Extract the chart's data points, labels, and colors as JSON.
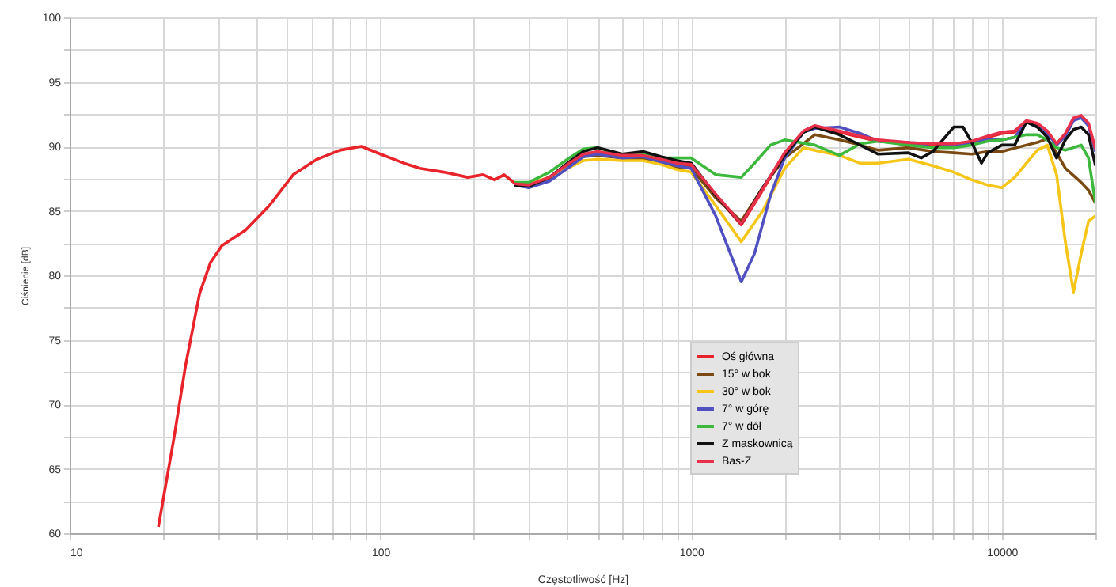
{
  "chart_data": {
    "type": "line",
    "xlabel": "Częstotliwość [Hz]",
    "ylabel": "Ciśnienie [dB]",
    "log": "x",
    "xlim": [
      10,
      20000
    ],
    "ylim": [
      60,
      100
    ],
    "xticks": [
      10,
      {
        "value": 20,
        "label": null
      },
      {
        "value": 30,
        "label": null
      },
      {
        "value": 40,
        "label": null
      },
      {
        "value": 50,
        "label": null
      },
      {
        "value": 60,
        "label": null
      },
      {
        "value": 70,
        "label": null
      },
      {
        "value": 80,
        "label": null
      },
      {
        "value": 90,
        "label": null
      },
      100,
      {
        "value": 200,
        "label": null
      },
      {
        "value": 300,
        "label": null
      },
      {
        "value": 400,
        "label": null
      },
      {
        "value": 500,
        "label": null
      },
      {
        "value": 600,
        "label": null
      },
      {
        "value": 700,
        "label": null
      },
      {
        "value": 800,
        "label": null
      },
      {
        "value": 900,
        "label": null
      },
      1000,
      {
        "value": 2000,
        "label": null
      },
      {
        "value": 3000,
        "label": null
      },
      {
        "value": 4000,
        "label": null
      },
      {
        "value": 5000,
        "label": null
      },
      {
        "value": 6000,
        "label": null
      },
      {
        "value": 7000,
        "label": null
      },
      {
        "value": 8000,
        "label": null
      },
      {
        "value": 9000,
        "label": null
      },
      10000,
      {
        "value": 20000,
        "label": null
      }
    ],
    "yticks": [
      60,
      {
        "value": 62.5,
        "label": null
      },
      65,
      {
        "value": 67.5,
        "label": null
      },
      70,
      {
        "value": 72.5,
        "label": null
      },
      75,
      {
        "value": 77.5,
        "label": null
      },
      80,
      {
        "value": 82.5,
        "label": null
      },
      85,
      {
        "value": 87.5,
        "label": null
      },
      90,
      {
        "value": 92.5,
        "label": null
      },
      95,
      {
        "value": 97.5,
        "label": null
      },
      100
    ],
    "grid": true,
    "legend": "bottom",
    "marker": "none",
    "line_style": "solid",
    "series": [
      {
        "name": "Oś główna",
        "color": "#e8232a",
        "x": [
          19.3,
          21.7,
          23.6,
          26.2,
          28.4,
          30.9,
          36.8,
          43.9,
          52.4,
          62.5,
          74,
          86.8,
          100,
          119,
          134,
          160,
          191,
          214,
          233,
          250,
          272,
          300,
          350,
          400,
          450,
          500,
          600,
          700,
          800,
          900,
          1000,
          1200,
          1450,
          1700,
          2000,
          2300,
          2500,
          3000,
          3500,
          4000,
          5000,
          6000,
          7000,
          8000,
          9000,
          10000,
          11000,
          12000,
          13000,
          14000,
          15000,
          16000,
          17000,
          18000,
          19000,
          20000
        ],
        "values": [
          60.5,
          67.5,
          73,
          78.6,
          81,
          82.3,
          83.5,
          85.4,
          87.8,
          89,
          89.7,
          90,
          89.4,
          88.7,
          88.3,
          88,
          87.6,
          87.8,
          87.4,
          87.8,
          87.1,
          87,
          87.6,
          88.5,
          89.3,
          89.5,
          89.2,
          89.2,
          88.9,
          88.6,
          88.5,
          86.2,
          83.9,
          86.6,
          89.5,
          91.1,
          91.6,
          91.1,
          90.7,
          90.4,
          90.2,
          90.1,
          90.1,
          90.3,
          90.7,
          91,
          91.1,
          91.9,
          91.7,
          91.1,
          90.1,
          90.9,
          92.1,
          92.3,
          91.7,
          89.7
        ]
      },
      {
        "name": "15° w bok",
        "color": "#7b4a12",
        "x": [
          270,
          300,
          350,
          400,
          450,
          500,
          600,
          700,
          800,
          900,
          1000,
          1200,
          1450,
          1700,
          2000,
          2500,
          3000,
          3500,
          4000,
          5000,
          6000,
          7000,
          8000,
          9000,
          10000,
          12000,
          13000,
          14000,
          15000,
          16000,
          18000,
          19000,
          20000
        ],
        "values": [
          87,
          86.9,
          87.5,
          88.4,
          89.2,
          89.3,
          89.1,
          89,
          88.8,
          88.4,
          88.3,
          86,
          84.2,
          86.8,
          89.1,
          90.9,
          90.5,
          90.1,
          89.7,
          89.9,
          89.6,
          89.5,
          89.4,
          89.6,
          89.6,
          90.1,
          90.3,
          90.6,
          89.5,
          88.3,
          87.2,
          86.6,
          85.6
        ]
      },
      {
        "name": "30° w bok",
        "color": "#f5c518",
        "x": [
          270,
          300,
          350,
          400,
          450,
          500,
          600,
          700,
          800,
          900,
          1000,
          1200,
          1450,
          1700,
          2000,
          2300,
          2500,
          3000,
          3500,
          4000,
          5000,
          6000,
          7000,
          8000,
          9000,
          10000,
          11000,
          12000,
          13000,
          14000,
          15000,
          16000,
          17000,
          18000,
          19000,
          20000
        ],
        "values": [
          87.2,
          87.1,
          87.6,
          88.3,
          88.9,
          89,
          88.9,
          88.9,
          88.6,
          88.2,
          88,
          85.4,
          82.6,
          85,
          88.3,
          89.9,
          89.7,
          89.3,
          88.7,
          88.7,
          89,
          88.5,
          88,
          87.4,
          87,
          86.8,
          87.6,
          88.7,
          89.7,
          90.1,
          87.8,
          82.6,
          78.7,
          81.7,
          84.2,
          84.6
        ]
      },
      {
        "name": "7° w górę",
        "color": "#5050c0",
        "x": [
          270,
          300,
          350,
          400,
          450,
          500,
          600,
          700,
          800,
          900,
          1000,
          1200,
          1450,
          1600,
          1800,
          2000,
          2300,
          2500,
          3000,
          3500,
          4000,
          5000,
          6000,
          7000,
          8000,
          9000,
          10000,
          11000,
          12000,
          13000,
          14000,
          15000,
          16000,
          17000,
          18000,
          19000,
          20000
        ],
        "values": [
          87,
          86.8,
          87.3,
          88.3,
          89.2,
          89.4,
          89.1,
          89.2,
          88.8,
          88.5,
          88.3,
          84.6,
          79.5,
          81.7,
          86.2,
          89.1,
          91.1,
          91.4,
          91.5,
          91,
          90.4,
          90.3,
          89.9,
          90.1,
          90.3,
          90.5,
          90.5,
          90.7,
          91.9,
          91.5,
          91,
          90.1,
          90.8,
          92,
          92.2,
          91.6,
          89.6
        ]
      },
      {
        "name": "7° w dół",
        "color": "#3cb83c",
        "x": [
          270,
          300,
          350,
          400,
          450,
          500,
          600,
          700,
          800,
          900,
          1000,
          1200,
          1450,
          1600,
          1800,
          2000,
          2500,
          3000,
          3500,
          4000,
          5000,
          6000,
          7000,
          8000,
          9000,
          10000,
          12000,
          13000,
          14000,
          15000,
          16000,
          18000,
          19000,
          20000
        ],
        "values": [
          87.2,
          87.2,
          88,
          89,
          89.8,
          89.9,
          89.3,
          89.5,
          89.1,
          89.1,
          89.1,
          87.8,
          87.6,
          88.7,
          90.1,
          90.5,
          90.1,
          89.3,
          90.2,
          90.4,
          90.1,
          89.9,
          89.9,
          90.1,
          90.4,
          90.5,
          90.9,
          90.9,
          90.5,
          89.9,
          89.7,
          90.1,
          89.1,
          85.6
        ]
      },
      {
        "name": "Z maskownicą",
        "color": "#111111",
        "x": [
          270,
          300,
          350,
          400,
          450,
          500,
          600,
          700,
          800,
          900,
          1000,
          1200,
          1450,
          1700,
          2000,
          2300,
          2500,
          3000,
          3500,
          4000,
          5000,
          5500,
          6000,
          7000,
          7500,
          8000,
          8600,
          9000,
          10000,
          11000,
          12000,
          13000,
          14000,
          15000,
          16000,
          17000,
          18000,
          19000,
          20000
        ],
        "values": [
          87,
          86.9,
          87.6,
          88.7,
          89.6,
          89.9,
          89.4,
          89.6,
          89.2,
          88.9,
          88.7,
          86.2,
          84,
          86.8,
          89.3,
          91.1,
          91.5,
          90.9,
          90.1,
          89.4,
          89.5,
          89.1,
          89.6,
          91.5,
          91.5,
          90.3,
          88.7,
          89.5,
          90.1,
          90.1,
          91.9,
          91.5,
          90.7,
          89.1,
          90.5,
          91.3,
          91.5,
          90.9,
          88.5
        ]
      },
      {
        "name": "Bas-Z",
        "color": "#e8304a",
        "x": [
          270,
          300,
          350,
          400,
          450,
          500,
          600,
          700,
          800,
          900,
          1000,
          1200,
          1450,
          1700,
          2000,
          2300,
          2500,
          3000,
          3500,
          4000,
          5000,
          6000,
          7000,
          8000,
          9000,
          10000,
          11000,
          12000,
          13000,
          14000,
          15000,
          16000,
          17000,
          18000,
          19000,
          20000
        ],
        "values": [
          87.1,
          87,
          87.6,
          88.6,
          89.4,
          89.6,
          89.3,
          89.3,
          89,
          88.7,
          88.6,
          86.3,
          84,
          86.7,
          89.5,
          91.2,
          91.6,
          91.2,
          90.8,
          90.5,
          90.3,
          90.2,
          90.2,
          90.4,
          90.8,
          91.1,
          91.2,
          92,
          91.8,
          91.2,
          90.2,
          91,
          92.2,
          92.4,
          91.8,
          89.8
        ]
      }
    ]
  }
}
